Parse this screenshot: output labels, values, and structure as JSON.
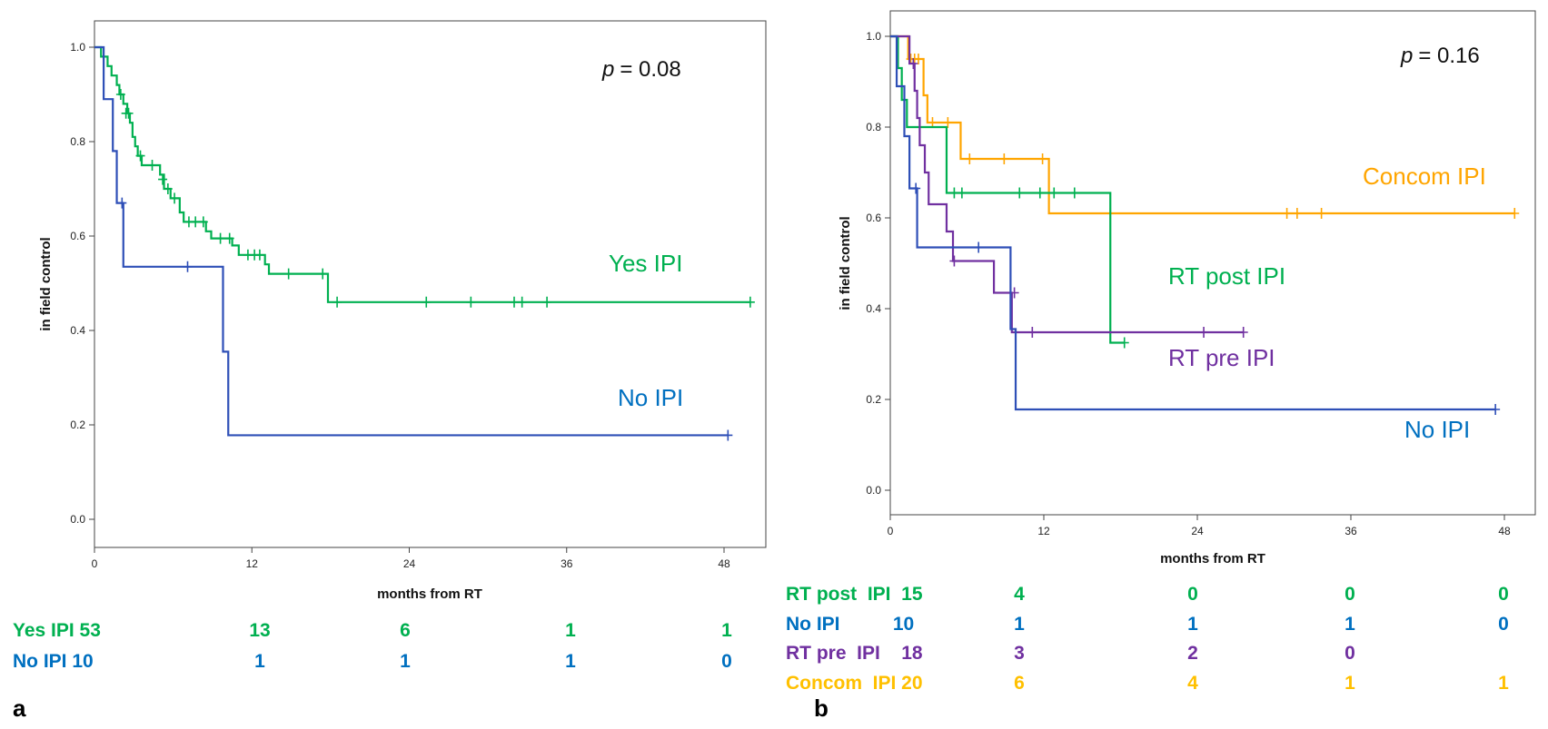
{
  "chart_data": [
    {
      "type": "line",
      "subtype": "kaplan-meier",
      "panel_label": "a",
      "p_label": "p",
      "p_value_text": "= 0.08",
      "xlabel": "months from RT",
      "ylabel": "in field control",
      "xlim": [
        0,
        50
      ],
      "ylim": [
        -0.05,
        1.05
      ],
      "xticks": [
        0,
        12,
        24,
        36,
        48
      ],
      "yticks": [
        0.0,
        0.2,
        0.4,
        0.6,
        0.8,
        1.0
      ],
      "series": [
        {
          "name": "Yes IPI",
          "color": "#00b050",
          "steps": [
            [
              0,
              1.0
            ],
            [
              0.5,
              0.98
            ],
            [
              1.0,
              0.96
            ],
            [
              1.3,
              0.94
            ],
            [
              1.7,
              0.92
            ],
            [
              1.9,
              0.9
            ],
            [
              2.2,
              0.88
            ],
            [
              2.5,
              0.86
            ],
            [
              2.7,
              0.84
            ],
            [
              2.9,
              0.81
            ],
            [
              3.1,
              0.79
            ],
            [
              3.3,
              0.77
            ],
            [
              3.6,
              0.75
            ],
            [
              5.0,
              0.73
            ],
            [
              5.3,
              0.7
            ],
            [
              5.8,
              0.68
            ],
            [
              6.5,
              0.65
            ],
            [
              6.8,
              0.63
            ],
            [
              8.5,
              0.61
            ],
            [
              8.9,
              0.595
            ],
            [
              10.5,
              0.58
            ],
            [
              11.0,
              0.56
            ],
            [
              13.0,
              0.54
            ],
            [
              13.3,
              0.52
            ],
            [
              17.8,
              0.46
            ]
          ],
          "end": 50,
          "censors": [
            [
              2.0,
              0.9
            ],
            [
              2.4,
              0.86
            ],
            [
              2.6,
              0.86
            ],
            [
              3.5,
              0.77
            ],
            [
              4.4,
              0.75
            ],
            [
              5.2,
              0.72
            ],
            [
              5.6,
              0.7
            ],
            [
              6.1,
              0.68
            ],
            [
              7.2,
              0.63
            ],
            [
              7.7,
              0.63
            ],
            [
              8.3,
              0.63
            ],
            [
              9.6,
              0.595
            ],
            [
              10.3,
              0.595
            ],
            [
              11.7,
              0.56
            ],
            [
              12.2,
              0.56
            ],
            [
              12.6,
              0.56
            ],
            [
              14.8,
              0.52
            ],
            [
              17.4,
              0.52
            ],
            [
              18.5,
              0.46
            ],
            [
              25.3,
              0.46
            ],
            [
              28.7,
              0.46
            ],
            [
              32.0,
              0.46
            ],
            [
              32.6,
              0.46
            ],
            [
              34.5,
              0.46
            ],
            [
              50.0,
              0.46
            ]
          ]
        },
        {
          "name": "No IPI",
          "color": "#2e4fb7",
          "steps": [
            [
              0,
              1.0
            ],
            [
              0.7,
              0.89
            ],
            [
              1.4,
              0.78
            ],
            [
              1.7,
              0.67
            ],
            [
              2.2,
              0.535
            ],
            [
              9.8,
              0.355
            ],
            [
              10.2,
              0.178
            ]
          ],
          "end": 48.3,
          "censors": [
            [
              2.1,
              0.67
            ],
            [
              7.1,
              0.535
            ],
            [
              48.3,
              0.178
            ]
          ]
        }
      ],
      "risk_table": [
        {
          "name": "Yes IPI 53",
          "counts": [
            "13",
            "6",
            "1",
            "1"
          ],
          "color": "#00b050"
        },
        {
          "name": "No IPI 10",
          "counts": [
            "1",
            "1",
            "1",
            "0"
          ],
          "color": "#0070c0"
        }
      ]
    },
    {
      "type": "line",
      "subtype": "kaplan-meier",
      "panel_label": "b",
      "p_label": "p",
      "p_value_text": "= 0.16",
      "xlabel": "months from RT",
      "ylabel": "in field control",
      "xlim": [
        0,
        50
      ],
      "ylim": [
        -0.05,
        1.05
      ],
      "xticks": [
        0,
        12,
        24,
        36,
        48
      ],
      "yticks": [
        0.0,
        0.2,
        0.4,
        0.6,
        0.8,
        1.0
      ],
      "series": [
        {
          "name": "Concom IPI",
          "color": "#ffa500",
          "steps": [
            [
              0,
              1.0
            ],
            [
              1.4,
              0.95
            ],
            [
              2.6,
              0.87
            ],
            [
              2.9,
              0.81
            ],
            [
              5.5,
              0.73
            ],
            [
              12.4,
              0.61
            ]
          ],
          "end": 48.8,
          "censors": [
            [
              1.6,
              0.95
            ],
            [
              1.9,
              0.95
            ],
            [
              2.2,
              0.95
            ],
            [
              3.3,
              0.81
            ],
            [
              4.5,
              0.81
            ],
            [
              6.2,
              0.73
            ],
            [
              8.9,
              0.73
            ],
            [
              11.9,
              0.73
            ],
            [
              17.2,
              0.61
            ],
            [
              31.0,
              0.61
            ],
            [
              31.8,
              0.61
            ],
            [
              33.7,
              0.61
            ],
            [
              48.8,
              0.61
            ]
          ]
        },
        {
          "name": "RT post IPI",
          "color": "#00b050",
          "steps": [
            [
              0,
              1.0
            ],
            [
              0.6,
              0.93
            ],
            [
              0.9,
              0.86
            ],
            [
              1.3,
              0.8
            ],
            [
              4.4,
              0.655
            ],
            [
              17.2,
              0.325
            ]
          ],
          "end": 18.3,
          "censors": [
            [
              5.0,
              0.655
            ],
            [
              5.6,
              0.655
            ],
            [
              10.1,
              0.655
            ],
            [
              11.7,
              0.655
            ],
            [
              12.8,
              0.655
            ],
            [
              14.4,
              0.655
            ],
            [
              18.3,
              0.325
            ]
          ]
        },
        {
          "name": "RT pre IPI",
          "color": "#7030a0",
          "steps": [
            [
              0,
              1.0
            ],
            [
              1.5,
              0.94
            ],
            [
              1.9,
              0.88
            ],
            [
              2.1,
              0.82
            ],
            [
              2.3,
              0.76
            ],
            [
              2.7,
              0.7
            ],
            [
              3.0,
              0.63
            ],
            [
              4.4,
              0.57
            ],
            [
              4.9,
              0.505
            ],
            [
              8.1,
              0.435
            ],
            [
              9.5,
              0.348
            ]
          ],
          "end": 27.6,
          "censors": [
            [
              1.8,
              0.94
            ],
            [
              5.0,
              0.505
            ],
            [
              9.7,
              0.435
            ],
            [
              11.1,
              0.348
            ],
            [
              24.5,
              0.348
            ],
            [
              27.6,
              0.348
            ]
          ]
        },
        {
          "name": "No IPI",
          "color": "#2e4fb7",
          "steps": [
            [
              0,
              1.0
            ],
            [
              0.5,
              0.89
            ],
            [
              1.1,
              0.78
            ],
            [
              1.5,
              0.665
            ],
            [
              2.1,
              0.535
            ],
            [
              9.4,
              0.355
            ],
            [
              9.8,
              0.178
            ]
          ],
          "end": 47.3,
          "censors": [
            [
              2.0,
              0.665
            ],
            [
              6.9,
              0.535
            ],
            [
              47.3,
              0.178
            ]
          ]
        }
      ],
      "risk_table": [
        {
          "name": "RT post  IPI  15",
          "counts": [
            "4",
            "0",
            "0",
            "0"
          ],
          "color": "#00b050"
        },
        {
          "name": "No IPI          10",
          "counts": [
            "1",
            "1",
            "1",
            "0"
          ],
          "color": "#0070c0"
        },
        {
          "name": "RT pre  IPI    18",
          "counts": [
            "3",
            "2",
            "0",
            ""
          ],
          "color": "#7030a0"
        },
        {
          "name": "Concom  IPI 20",
          "counts": [
            "6",
            "4",
            "1",
            "1"
          ],
          "color": "#ffc000"
        }
      ]
    }
  ],
  "series_label_colors": {
    "yes_ipi": "#00b050",
    "no_ipi": "#0070c0",
    "concom_ipi": "#ffa500",
    "rt_post_ipi": "#00b050",
    "rt_pre_ipi": "#7030a0"
  }
}
